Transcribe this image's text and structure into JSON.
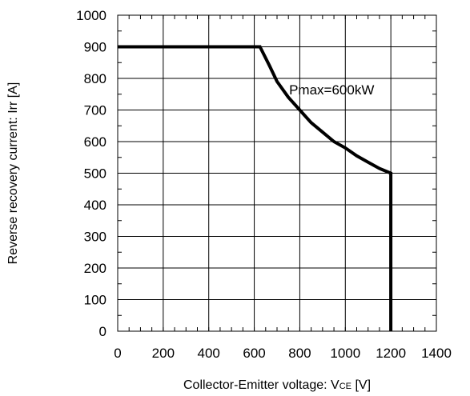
{
  "chart_data": {
    "type": "line",
    "xlabel_main": "Collector-Emitter voltage: V",
    "xlabel_sub": "CE",
    "xlabel_unit": " [V]",
    "ylabel": "Reverse recovery current: Irr [A]",
    "xlim": [
      0,
      1400
    ],
    "ylim": [
      0,
      1000
    ],
    "x_ticks": [
      0,
      200,
      400,
      600,
      800,
      1000,
      1200,
      1400
    ],
    "y_ticks": [
      0,
      100,
      200,
      300,
      400,
      500,
      600,
      700,
      800,
      900,
      1000
    ],
    "grid": true,
    "annotation": "Pmax=600kW",
    "series": [
      {
        "color": "#000000",
        "x": [
          0,
          625,
          667,
          700,
          750,
          800,
          850,
          900,
          950,
          1000,
          1050,
          1100,
          1150,
          1200,
          1200
        ],
        "y": [
          900,
          900,
          840,
          790,
          740,
          700,
          660,
          630,
          600,
          580,
          555,
          535,
          515,
          500,
          0
        ]
      }
    ]
  }
}
